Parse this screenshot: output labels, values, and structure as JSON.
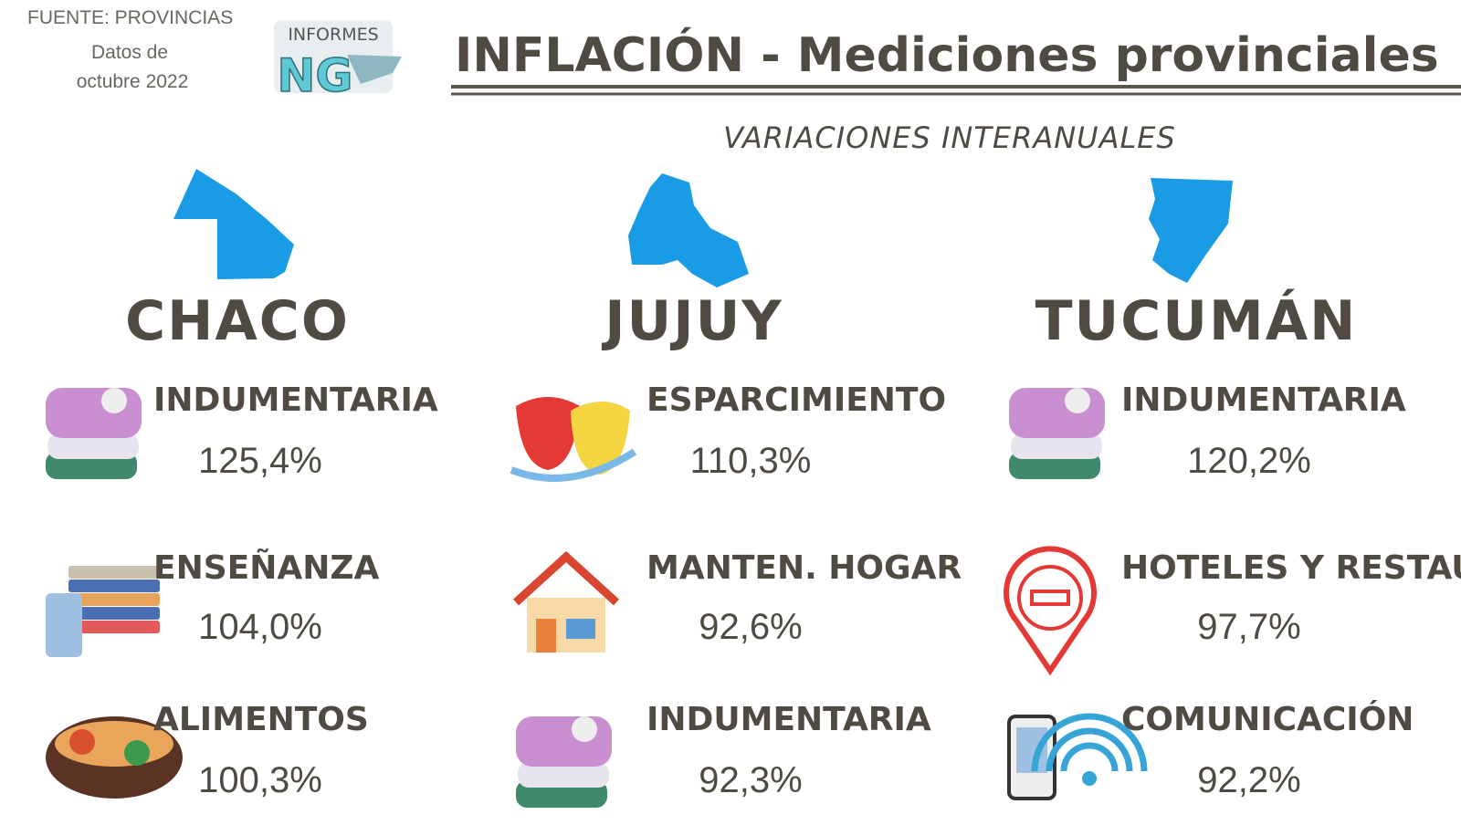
{
  "header": {
    "source": "FUENTE: PROVINCIAS",
    "date_line1": "Datos de",
    "date_line2": "octubre 2022",
    "logo_text": "INFORMES",
    "logo_mark": "NG",
    "title": "INFLACIÓN - Mediciones provinciales",
    "subtitle": "VARIACIONES INTERANUALES"
  },
  "provinces": [
    {
      "name": "CHACO",
      "items": [
        {
          "label": "INDUMENTARIA",
          "value": "125,4%"
        },
        {
          "label": "ENSEÑANZA",
          "value": "104,0%"
        },
        {
          "label": "ALIMENTOS",
          "value": "100,3%"
        }
      ]
    },
    {
      "name": "JUJUY",
      "items": [
        {
          "label": "ESPARCIMIENTO",
          "value": "110,3%"
        },
        {
          "label": "MANTEN. HOGAR",
          "value": "92,6%"
        },
        {
          "label": "INDUMENTARIA",
          "value": "92,3%"
        }
      ]
    },
    {
      "name": "TUCUMÁN",
      "items": [
        {
          "label": "INDUMENTARIA",
          "value": "120,2%"
        },
        {
          "label": "HOTELES Y RESTAU.",
          "value": "97,7%"
        },
        {
          "label": "COMUNICACIÓN",
          "value": "92,2%"
        }
      ]
    }
  ]
}
